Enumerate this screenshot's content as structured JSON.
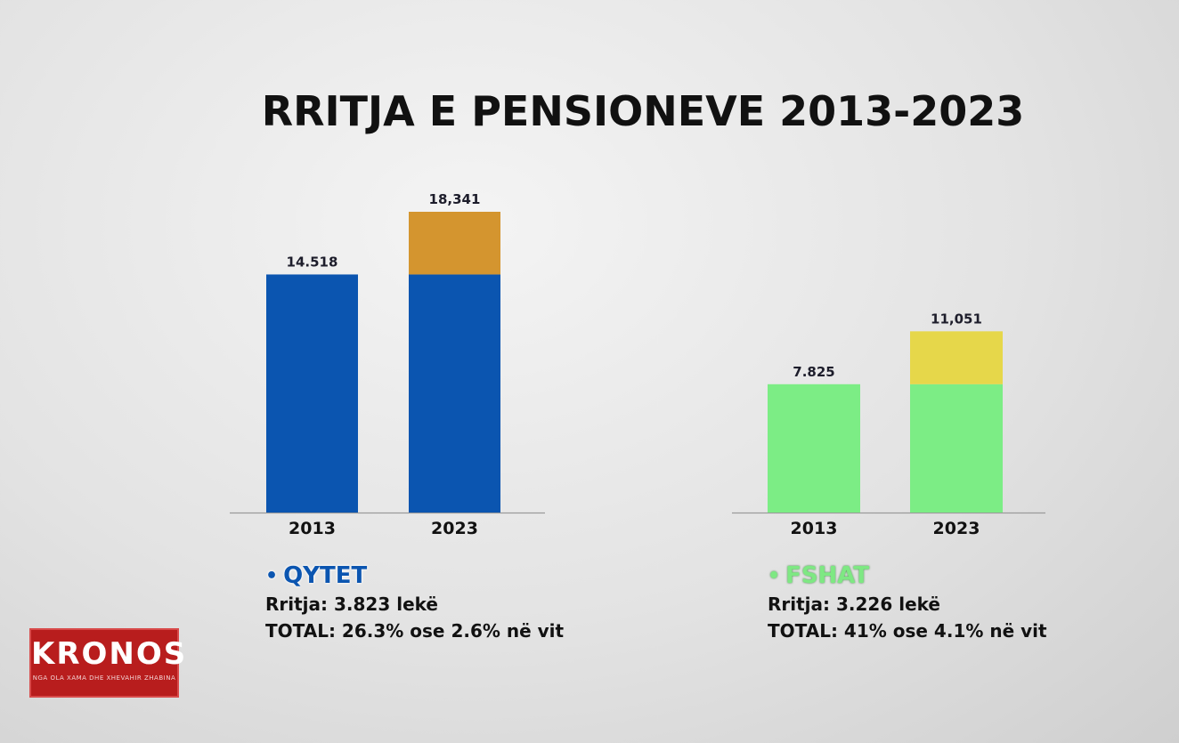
{
  "title": "RRITJA E PENSIONEVE 2013-2023",
  "colors": {
    "qytet_base": "#0b55b0",
    "qytet_increase": "#d4952f",
    "fshat_base": "#7ced85",
    "fshat_increase": "#e6d74a"
  },
  "chart_data": [
    {
      "type": "bar",
      "stacked": true,
      "categories": [
        "2013",
        "2023"
      ],
      "series": [
        {
          "values": [
            14518,
            14518
          ]
        },
        {
          "values": [
            0,
            3823
          ]
        }
      ],
      "data_labels": [
        "14.518",
        "18,341"
      ],
      "ylim": [
        0,
        18341
      ]
    },
    {
      "type": "bar",
      "stacked": true,
      "categories": [
        "2013",
        "2023"
      ],
      "series": [
        {
          "values": [
            7825,
            7825
          ]
        },
        {
          "values": [
            0,
            3226
          ]
        }
      ],
      "data_labels": [
        "7.825",
        "11,051"
      ],
      "ylim": [
        0,
        18341
      ]
    }
  ],
  "panels": {
    "qytet": {
      "name": "QYTET",
      "growth": "Rritja: 3.823 lekë",
      "total": "TOTAL: 26.3% ose 2.6% në vit"
    },
    "fshat": {
      "name": "FSHAT",
      "growth": "Rritja: 3.226 lekë",
      "total": "TOTAL: 41% ose 4.1% në vit"
    }
  },
  "logo": {
    "brand": "KRONOS",
    "tagline": "NGA OLA XAMA DHE XHEVAHIR ZHABINA"
  }
}
